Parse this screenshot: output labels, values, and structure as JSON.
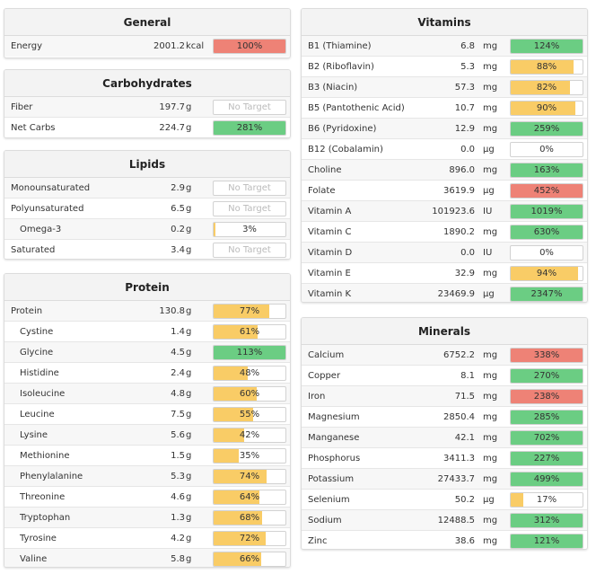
{
  "colors": {
    "green": "#6bcd83",
    "yellow": "#f9cc66",
    "red": "#ee8276"
  },
  "general": {
    "title": "General",
    "rows": [
      {
        "name": "Energy",
        "value": "2001.2",
        "unit": "kcal",
        "pct": "100%",
        "fill": 100,
        "color": "red"
      }
    ]
  },
  "carbohydrates": {
    "title": "Carbohydrates",
    "rows": [
      {
        "name": "Fiber",
        "value": "197.7",
        "unit": "g",
        "pct": "No Target",
        "fill": 0,
        "color": "none"
      },
      {
        "name": "Net Carbs",
        "value": "224.7",
        "unit": "g",
        "pct": "281%",
        "fill": 100,
        "color": "green"
      }
    ]
  },
  "lipids": {
    "title": "Lipids",
    "rows": [
      {
        "name": "Monounsaturated",
        "value": "2.9",
        "unit": "g",
        "pct": "No Target",
        "fill": 0,
        "color": "none"
      },
      {
        "name": "Polyunsaturated",
        "value": "6.5",
        "unit": "g",
        "pct": "No Target",
        "fill": 0,
        "color": "none"
      },
      {
        "name": "Omega-3",
        "value": "0.2",
        "unit": "g",
        "pct": "3%",
        "fill": 3,
        "color": "yellow",
        "indent": true
      },
      {
        "name": "Saturated",
        "value": "3.4",
        "unit": "g",
        "pct": "No Target",
        "fill": 0,
        "color": "none"
      }
    ]
  },
  "protein": {
    "title": "Protein",
    "rows": [
      {
        "name": "Protein",
        "value": "130.8",
        "unit": "g",
        "pct": "77%",
        "fill": 77,
        "color": "yellow"
      },
      {
        "name": "Cystine",
        "value": "1.4",
        "unit": "g",
        "pct": "61%",
        "fill": 61,
        "color": "yellow",
        "indent": true
      },
      {
        "name": "Glycine",
        "value": "4.5",
        "unit": "g",
        "pct": "113%",
        "fill": 100,
        "color": "green",
        "indent": true
      },
      {
        "name": "Histidine",
        "value": "2.4",
        "unit": "g",
        "pct": "48%",
        "fill": 48,
        "color": "yellow",
        "indent": true
      },
      {
        "name": "Isoleucine",
        "value": "4.8",
        "unit": "g",
        "pct": "60%",
        "fill": 60,
        "color": "yellow",
        "indent": true
      },
      {
        "name": "Leucine",
        "value": "7.5",
        "unit": "g",
        "pct": "55%",
        "fill": 55,
        "color": "yellow",
        "indent": true
      },
      {
        "name": "Lysine",
        "value": "5.6",
        "unit": "g",
        "pct": "42%",
        "fill": 42,
        "color": "yellow",
        "indent": true
      },
      {
        "name": "Methionine",
        "value": "1.5",
        "unit": "g",
        "pct": "35%",
        "fill": 35,
        "color": "yellow",
        "indent": true
      },
      {
        "name": "Phenylalanine",
        "value": "5.3",
        "unit": "g",
        "pct": "74%",
        "fill": 74,
        "color": "yellow",
        "indent": true
      },
      {
        "name": "Threonine",
        "value": "4.6",
        "unit": "g",
        "pct": "64%",
        "fill": 64,
        "color": "yellow",
        "indent": true
      },
      {
        "name": "Tryptophan",
        "value": "1.3",
        "unit": "g",
        "pct": "68%",
        "fill": 68,
        "color": "yellow",
        "indent": true
      },
      {
        "name": "Tyrosine",
        "value": "4.2",
        "unit": "g",
        "pct": "72%",
        "fill": 72,
        "color": "yellow",
        "indent": true
      },
      {
        "name": "Valine",
        "value": "5.8",
        "unit": "g",
        "pct": "66%",
        "fill": 66,
        "color": "yellow",
        "indent": true
      }
    ]
  },
  "vitamins": {
    "title": "Vitamins",
    "rows": [
      {
        "name": "B1 (Thiamine)",
        "value": "6.8",
        "unit": "mg",
        "pct": "124%",
        "fill": 100,
        "color": "green"
      },
      {
        "name": "B2 (Riboflavin)",
        "value": "5.3",
        "unit": "mg",
        "pct": "88%",
        "fill": 88,
        "color": "yellow"
      },
      {
        "name": "B3 (Niacin)",
        "value": "57.3",
        "unit": "mg",
        "pct": "82%",
        "fill": 82,
        "color": "yellow"
      },
      {
        "name": "B5 (Pantothenic Acid)",
        "value": "10.7",
        "unit": "mg",
        "pct": "90%",
        "fill": 90,
        "color": "yellow"
      },
      {
        "name": "B6 (Pyridoxine)",
        "value": "12.9",
        "unit": "mg",
        "pct": "259%",
        "fill": 100,
        "color": "green"
      },
      {
        "name": "B12 (Cobalamin)",
        "value": "0.0",
        "unit": "µg",
        "pct": "0%",
        "fill": 0,
        "color": "none"
      },
      {
        "name": "Choline",
        "value": "896.0",
        "unit": "mg",
        "pct": "163%",
        "fill": 100,
        "color": "green"
      },
      {
        "name": "Folate",
        "value": "3619.9",
        "unit": "µg",
        "pct": "452%",
        "fill": 100,
        "color": "red"
      },
      {
        "name": "Vitamin A",
        "value": "101923.6",
        "unit": "IU",
        "pct": "1019%",
        "fill": 100,
        "color": "green"
      },
      {
        "name": "Vitamin C",
        "value": "1890.2",
        "unit": "mg",
        "pct": "630%",
        "fill": 100,
        "color": "green"
      },
      {
        "name": "Vitamin D",
        "value": "0.0",
        "unit": "IU",
        "pct": "0%",
        "fill": 0,
        "color": "none"
      },
      {
        "name": "Vitamin E",
        "value": "32.9",
        "unit": "mg",
        "pct": "94%",
        "fill": 94,
        "color": "yellow"
      },
      {
        "name": "Vitamin K",
        "value": "23469.9",
        "unit": "µg",
        "pct": "2347%",
        "fill": 100,
        "color": "green"
      }
    ]
  },
  "minerals": {
    "title": "Minerals",
    "rows": [
      {
        "name": "Calcium",
        "value": "6752.2",
        "unit": "mg",
        "pct": "338%",
        "fill": 100,
        "color": "red"
      },
      {
        "name": "Copper",
        "value": "8.1",
        "unit": "mg",
        "pct": "270%",
        "fill": 100,
        "color": "green"
      },
      {
        "name": "Iron",
        "value": "71.5",
        "unit": "mg",
        "pct": "238%",
        "fill": 100,
        "color": "red"
      },
      {
        "name": "Magnesium",
        "value": "2850.4",
        "unit": "mg",
        "pct": "285%",
        "fill": 100,
        "color": "green"
      },
      {
        "name": "Manganese",
        "value": "42.1",
        "unit": "mg",
        "pct": "702%",
        "fill": 100,
        "color": "green"
      },
      {
        "name": "Phosphorus",
        "value": "3411.3",
        "unit": "mg",
        "pct": "227%",
        "fill": 100,
        "color": "green"
      },
      {
        "name": "Potassium",
        "value": "27433.7",
        "unit": "mg",
        "pct": "499%",
        "fill": 100,
        "color": "green"
      },
      {
        "name": "Selenium",
        "value": "50.2",
        "unit": "µg",
        "pct": "17%",
        "fill": 17,
        "color": "yellow"
      },
      {
        "name": "Sodium",
        "value": "12488.5",
        "unit": "mg",
        "pct": "312%",
        "fill": 100,
        "color": "green"
      },
      {
        "name": "Zinc",
        "value": "38.6",
        "unit": "mg",
        "pct": "121%",
        "fill": 100,
        "color": "green"
      }
    ]
  }
}
